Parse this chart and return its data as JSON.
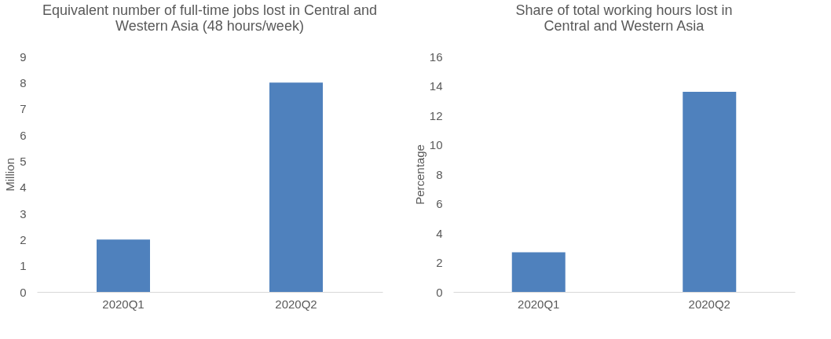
{
  "chart_data": [
    {
      "type": "bar",
      "title": "Equivalent number of full-time jobs lost in Central and Western Asia (48 hours/week)",
      "ylabel": "Million",
      "categories": [
        "2020Q1",
        "2020Q2"
      ],
      "values": [
        2.0,
        8.0
      ],
      "color": "#4f81bd",
      "ylim": [
        0,
        9
      ],
      "yticks": [
        0,
        1,
        2,
        3,
        4,
        5,
        6,
        7,
        8,
        9
      ],
      "grid": false
    },
    {
      "type": "bar",
      "title": "Share of total working hours lost in Central and Western Asia",
      "ylabel": "Percentage",
      "categories": [
        "2020Q1",
        "2020Q2"
      ],
      "values": [
        2.7,
        13.6
      ],
      "color": "#4f81bd",
      "ylim": [
        0,
        16
      ],
      "yticks": [
        0,
        2,
        4,
        6,
        8,
        10,
        12,
        14,
        16
      ],
      "grid": false
    }
  ]
}
